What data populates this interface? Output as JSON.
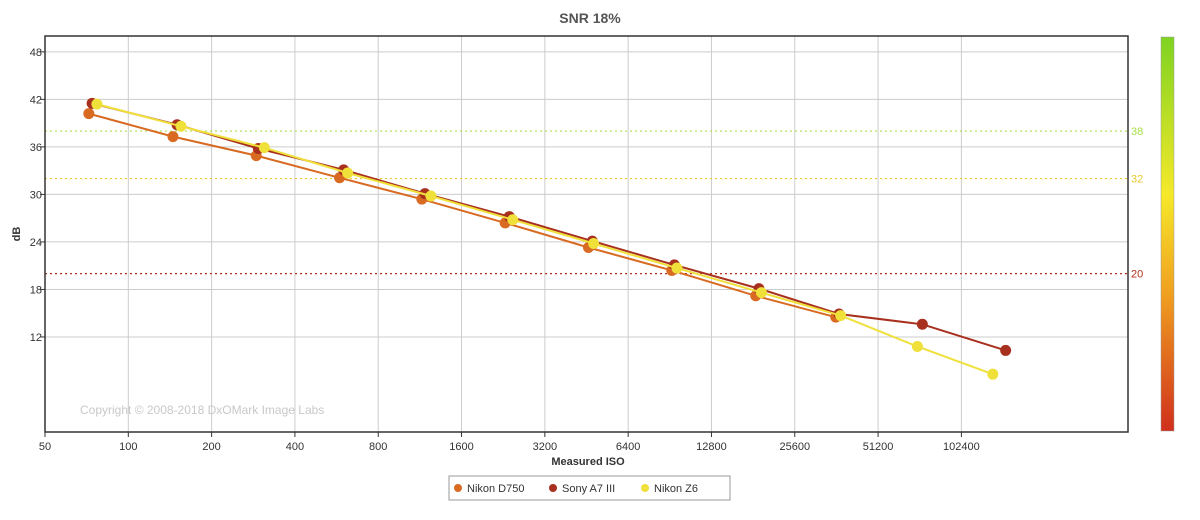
{
  "chart_data": {
    "type": "line",
    "title": "SNR 18%",
    "xlabel": "Measured ISO",
    "ylabel": "dB",
    "x_scale": "log2",
    "x_ticks": [
      "50",
      "100",
      "200",
      "400",
      "800",
      "1600",
      "3200",
      "6400",
      "12800",
      "25600",
      "51200",
      "102400"
    ],
    "x_tick_values": [
      50,
      100,
      200,
      400,
      800,
      1600,
      3200,
      6400,
      12800,
      25600,
      51200,
      102400
    ],
    "xlim": [
      50,
      409600
    ],
    "y_ticks": [
      "12",
      "18",
      "24",
      "30",
      "36",
      "42",
      "48"
    ],
    "y_tick_values": [
      12,
      18,
      24,
      30,
      36,
      42,
      48
    ],
    "ylim": [
      0,
      50
    ],
    "grid": true,
    "legend_position": "bottom-center",
    "watermark": "Copyright © 2008-2018 DxOMark Image Labs",
    "reference_lines": [
      {
        "value": 38,
        "label": "38",
        "color": "#a8e04a"
      },
      {
        "value": 32,
        "label": "32",
        "color": "#e8c830"
      },
      {
        "value": 20,
        "label": "20",
        "color": "#b83020"
      }
    ],
    "colorbar": {
      "position": "right",
      "colors": [
        "#7ed321",
        "#f6e92a",
        "#f08c20",
        "#d0301c"
      ]
    },
    "series": [
      {
        "name": "Nikon D750",
        "color": "#d86a22",
        "points": [
          [
            72,
            40.2
          ],
          [
            145,
            37.3
          ],
          [
            290,
            34.9
          ],
          [
            580,
            32.1
          ],
          [
            1150,
            29.4
          ],
          [
            2300,
            26.4
          ],
          [
            4600,
            23.3
          ],
          [
            9200,
            20.4
          ],
          [
            18500,
            17.2
          ],
          [
            36000,
            14.5
          ]
        ]
      },
      {
        "name": "Sony A7 III",
        "color": "#a8301e",
        "points": [
          [
            74,
            41.5
          ],
          [
            150,
            38.8
          ],
          [
            295,
            35.8
          ],
          [
            600,
            33.1
          ],
          [
            1180,
            30.1
          ],
          [
            2380,
            27.2
          ],
          [
            4750,
            24.1
          ],
          [
            9400,
            21.1
          ],
          [
            19000,
            18.1
          ],
          [
            37000,
            14.9
          ],
          [
            74000,
            13.6
          ],
          [
            148000,
            10.3
          ]
        ]
      },
      {
        "name": "Nikon Z6",
        "color": "#f0e03a",
        "points": [
          [
            77,
            41.4
          ],
          [
            155,
            38.6
          ],
          [
            310,
            35.9
          ],
          [
            620,
            32.7
          ],
          [
            1240,
            29.8
          ],
          [
            2450,
            26.8
          ],
          [
            4800,
            23.8
          ],
          [
            9600,
            20.7
          ],
          [
            19400,
            17.6
          ],
          [
            37500,
            14.7
          ],
          [
            71000,
            10.8
          ],
          [
            133000,
            7.3
          ]
        ]
      }
    ]
  }
}
